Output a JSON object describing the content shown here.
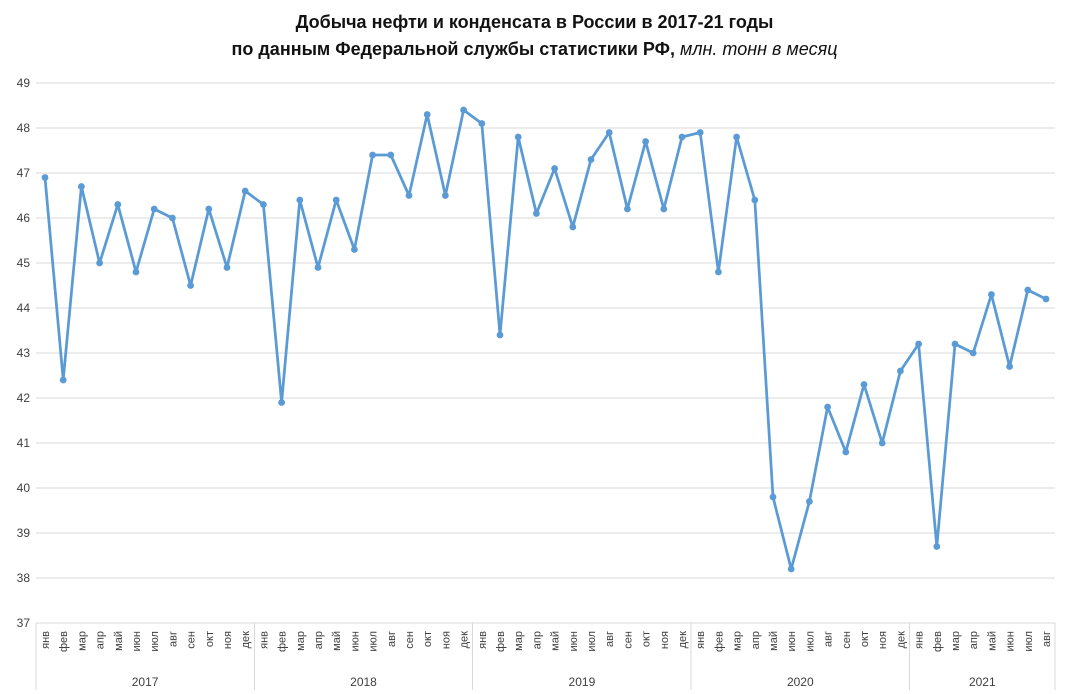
{
  "title": {
    "line1": "Добыча нефти и конденсата в России в 2017-21 годы",
    "line2_bold": "по данным Федеральной службы статистики РФ,",
    "line2_italic": " млн. тонн в месяц"
  },
  "colors": {
    "line": "#5B9BD5",
    "grid": "#D9D9D9",
    "axis_text": "#3f3f3f"
  },
  "chart_data": {
    "type": "line",
    "title": "Добыча нефти и конденсата в России в 2017-21 годы по данным Федеральной службы статистики РФ, млн. тонн в месяц",
    "ylabel": "",
    "xlabel": "",
    "ylim": [
      37,
      49
    ],
    "ytick_step": 1,
    "grid": "horizontal",
    "legend": "none",
    "marker": "circle",
    "groups": [
      {
        "year": "2017",
        "months": [
          "янв",
          "фев",
          "мар",
          "апр",
          "май",
          "июн",
          "июл",
          "авг",
          "сен",
          "окт",
          "ноя",
          "дек"
        ],
        "values": [
          46.9,
          42.4,
          46.7,
          45.0,
          46.3,
          44.8,
          46.2,
          46.0,
          44.5,
          46.2,
          44.9,
          46.6
        ]
      },
      {
        "year": "2018",
        "months": [
          "янв",
          "фев",
          "мар",
          "апр",
          "май",
          "июн",
          "июл",
          "авг",
          "сен",
          "окт",
          "ноя",
          "дек"
        ],
        "values": [
          46.3,
          41.9,
          46.4,
          44.9,
          46.4,
          45.3,
          47.4,
          47.4,
          46.5,
          48.3,
          46.5,
          48.4
        ]
      },
      {
        "year": "2019",
        "months": [
          "янв",
          "фев",
          "мар",
          "апр",
          "май",
          "июн",
          "июл",
          "авг",
          "сен",
          "окт",
          "ноя",
          "дек"
        ],
        "values": [
          48.1,
          43.4,
          47.8,
          46.1,
          47.1,
          45.8,
          47.3,
          47.9,
          46.2,
          47.7,
          46.2,
          47.8
        ]
      },
      {
        "year": "2020",
        "months": [
          "янв",
          "фев",
          "мар",
          "апр",
          "май",
          "июн",
          "июл",
          "авг",
          "сен",
          "окт",
          "ноя",
          "дек"
        ],
        "values": [
          47.9,
          44.8,
          47.8,
          46.4,
          39.8,
          38.2,
          39.7,
          41.8,
          40.8,
          42.3,
          41.0,
          42.6
        ]
      },
      {
        "year": "2021",
        "months": [
          "янв",
          "фев",
          "мар",
          "апр",
          "май",
          "июн",
          "июл",
          "авг"
        ],
        "values": [
          43.2,
          38.7,
          43.2,
          43.0,
          44.3,
          42.7,
          44.4,
          44.2
        ]
      }
    ]
  }
}
